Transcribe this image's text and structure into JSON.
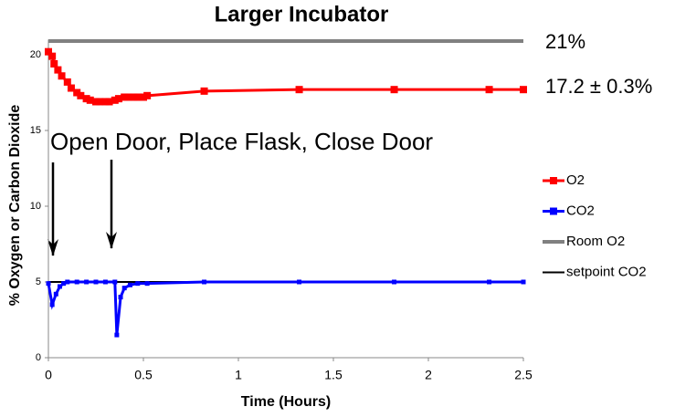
{
  "chart_data": {
    "type": "line",
    "title": "Larger Incubator",
    "xlabel": "Time (Hours)",
    "ylabel": "% Oxygen or Carbon Dioxide",
    "xlim": [
      0,
      2.5
    ],
    "xticks": [
      0,
      0.5,
      1,
      1.5,
      2,
      2.5
    ],
    "ylim": [
      0,
      21
    ],
    "yticks": [
      0,
      5,
      10,
      15,
      20
    ],
    "grid": false,
    "legend": "right",
    "annotations": [
      "21%",
      "17.2 ± 0.3%",
      "Open Door, Place Flask, Close Door"
    ],
    "series": [
      {
        "name": "O2",
        "color": "#ff0000",
        "marker": "square",
        "width": 3,
        "x": [
          0,
          0.02,
          0.03,
          0.05,
          0.07,
          0.1,
          0.12,
          0.15,
          0.17,
          0.2,
          0.22,
          0.25,
          0.27,
          0.3,
          0.32,
          0.35,
          0.37,
          0.4,
          0.42,
          0.45,
          0.47,
          0.5,
          0.52,
          0.82,
          1.32,
          1.82,
          2.32,
          2.5
        ],
        "values": [
          20.2,
          19.9,
          19.4,
          19.0,
          18.6,
          18.2,
          17.8,
          17.5,
          17.3,
          17.1,
          17.0,
          16.9,
          16.9,
          16.9,
          16.9,
          17.0,
          17.1,
          17.2,
          17.2,
          17.2,
          17.2,
          17.2,
          17.3,
          17.6,
          17.7,
          17.7,
          17.7,
          17.7
        ]
      },
      {
        "name": "CO2",
        "color": "#0000ff",
        "marker": "square",
        "width": 3,
        "x": [
          0,
          0.02,
          0.04,
          0.06,
          0.08,
          0.1,
          0.15,
          0.2,
          0.25,
          0.3,
          0.35,
          0.36,
          0.38,
          0.4,
          0.43,
          0.47,
          0.52,
          0.82,
          1.32,
          1.82,
          2.32,
          2.5
        ],
        "values": [
          4.9,
          3.5,
          4.2,
          4.7,
          4.9,
          5.0,
          5.0,
          5.0,
          5.0,
          5.0,
          5.0,
          1.5,
          4.0,
          4.6,
          4.8,
          4.9,
          4.9,
          5.0,
          5.0,
          5.0,
          5.0,
          5.0
        ]
      },
      {
        "name": "Room O2",
        "color": "#808080",
        "marker": "none",
        "width": 4,
        "x": [
          0,
          2.5
        ],
        "values": [
          20.9,
          20.9
        ]
      },
      {
        "name": "setpoint CO2",
        "color": "#000000",
        "marker": "none",
        "width": 2,
        "x": [
          0,
          2.5
        ],
        "values": [
          5,
          5
        ]
      }
    ]
  }
}
